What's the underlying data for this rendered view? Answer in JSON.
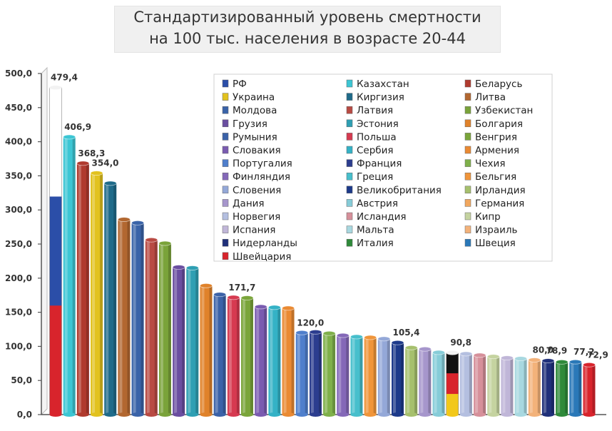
{
  "title_line1": "Стандартизированный уровень смертности",
  "title_line2": "на 100 тыс. населения  в возрасте 20-44",
  "chart_data": {
    "type": "bar",
    "title": "Стандартизированный уровень смертности на 100 тыс. населения в возрасте 20-44",
    "ylim": [
      0,
      500
    ],
    "yticks": [
      "0,0",
      "50,0",
      "100,0",
      "150,0",
      "200,0",
      "250,0",
      "300,0",
      "350,0",
      "400,0",
      "450,0",
      "500,0"
    ],
    "legend_position": "top-right, inside plot",
    "categories": [
      "РФ",
      "Казахстан",
      "Беларусь",
      "Украина",
      "Киргизия",
      "Литва",
      "Молдова",
      "Латвия",
      "Узбекистан",
      "Грузия",
      "Эстония",
      "Болгария",
      "Румыния",
      "Польша",
      "Венгрия",
      "Словакия",
      "Сербия",
      "Армения",
      "Португалия",
      "Франция",
      "Чехия",
      "Финляндия",
      "Греция",
      "Бельгия",
      "Словения",
      "Великобритания",
      "Ирландия",
      "Дания",
      "Австрия",
      "Германия",
      "Норвегия",
      "Исландия",
      "Кипр",
      "Испания",
      "Мальта",
      "Израиль",
      "Нидерланды",
      "Италия",
      "Швеция",
      "Швейцария"
    ],
    "values": [
      479.4,
      406.9,
      368.3,
      354.0,
      339,
      286,
      281,
      256,
      251,
      216,
      215,
      189,
      176,
      171.7,
      171,
      158,
      157,
      156,
      120.0,
      121,
      119,
      116,
      114,
      113,
      111,
      105.4,
      98,
      96,
      91,
      90.8,
      89,
      87,
      85,
      83,
      82,
      80.0,
      78.9,
      77,
      77.2,
      72.9
    ],
    "data_labels": [
      "479,4",
      "406,9",
      "368,3",
      "354,0",
      "",
      "",
      "",
      "",
      "",
      "",
      "",
      "",
      "",
      "171,7",
      "",
      "",
      "",
      "",
      "120,0",
      "",
      "",
      "",
      "",
      "",
      "",
      "105,4",
      "",
      "",
      "",
      "90,8",
      "",
      "",
      "",
      "",
      "",
      "80,0",
      "78,9",
      "",
      "77,2",
      "72,9"
    ],
    "colors": [
      "#2b4ea8",
      "#3cc6d4",
      "#b03a2e",
      "#e2c21e",
      "#1f6b8a",
      "#b26730",
      "#3a63a8",
      "#b84a43",
      "#7aa33a",
      "#6a4ea0",
      "#2e9fb3",
      "#e0822a",
      "#3b62a8",
      "#d63a50",
      "#7aa53a",
      "#7a5bb0",
      "#34b2c6",
      "#ea8a33",
      "#4f7fcc",
      "#2c3d8f",
      "#7fb04a",
      "#8468b8",
      "#47bfcc",
      "#f0953a",
      "#94a8d8",
      "#1d3a8a",
      "#a6c06d",
      "#a696cc",
      "#86ccd8",
      "#f1a75e",
      "#b4bfe0",
      "#d6909a",
      "#c5d3a0",
      "#c0b6d8",
      "#a8d8e0",
      "#f3b27a",
      "#20307a",
      "#2f8a3a",
      "#2a78b8",
      "#d8242c"
    ],
    "legend": [
      "РФ",
      "Казахстан",
      "Беларусь",
      "Украина",
      "Киргизия",
      "Литва",
      "Молдова",
      "Латвия",
      "Узбекистан",
      "Грузия",
      "Эстония",
      "Болгария",
      "Румыния",
      "Польша",
      "Венгрия",
      "Словакия",
      "Сербия",
      "Армения",
      "Португалия",
      "Франция",
      "Чехия",
      "Финляндия",
      "Греция",
      "Бельгия",
      "Словения",
      "Великобритания",
      "Ирландия",
      "Дания",
      "Австрия",
      "Германия",
      "Норвегия",
      "Исландия",
      "Кипр",
      "Испания",
      "Мальта",
      "Израиль",
      "Нидерланды",
      "Италия",
      "Швеция",
      "Швейцария"
    ]
  }
}
